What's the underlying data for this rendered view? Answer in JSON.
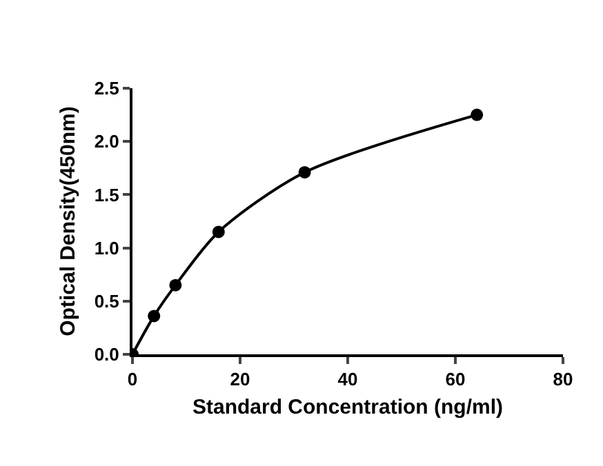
{
  "chart_data": {
    "type": "line",
    "xlabel": "Standard Concentration (ng/ml)",
    "ylabel": "Optical Density(450nm)",
    "x": [
      0,
      4,
      8,
      16,
      32,
      64
    ],
    "series": [
      {
        "color": "#000000",
        "values": [
          0,
          0.36,
          0.65,
          1.15,
          1.71,
          2.25
        ]
      }
    ],
    "xlim": [
      0,
      80
    ],
    "xticks": [
      0,
      20,
      40,
      60,
      80
    ],
    "ylim": [
      0,
      2.5
    ],
    "yticks": [
      {
        "value": 0,
        "label": "0.0"
      },
      {
        "value": 0.5,
        "label": "0.5"
      },
      {
        "value": 1,
        "label": "1.0"
      },
      {
        "value": 1.5,
        "label": "1.5"
      },
      {
        "value": 2,
        "label": "2.0"
      },
      {
        "value": 2.5,
        "label": "2.5"
      }
    ],
    "marker": "circle",
    "line_style": "solid"
  }
}
